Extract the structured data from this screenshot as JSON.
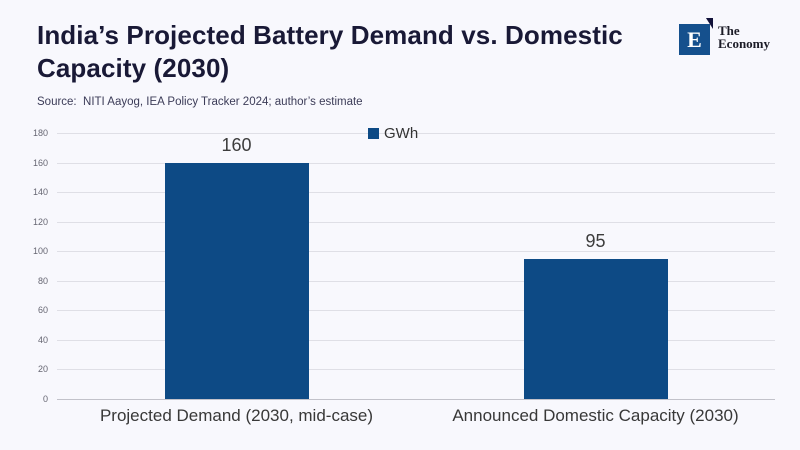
{
  "page": {
    "background": "#f8f8fd",
    "title": "India’s Projected Battery Demand vs. Domestic Capacity (2030)",
    "source": "Source:  NITI Aayog, IEA Policy Tracker 2024; author’s estimate"
  },
  "logo": {
    "letter": "E",
    "name_line1": "The",
    "name_line2": "Economy",
    "square_color": "#15508d"
  },
  "chart_data": {
    "type": "bar",
    "title": "India’s Projected Battery Demand vs. Domestic Capacity (2030)",
    "categories": [
      "Projected Demand (2030, mid-case)",
      "Announced Domestic Capacity (2030)"
    ],
    "values": [
      160,
      95
    ],
    "data_labels": [
      "160",
      "95"
    ],
    "legend": [
      {
        "label": "GWh",
        "color": "#0d4a85"
      }
    ],
    "legend_position": "top-center",
    "xlabel": "",
    "ylabel": "",
    "ylim": [
      0,
      180
    ],
    "yticks": [
      0,
      20,
      40,
      60,
      80,
      100,
      120,
      140,
      160,
      180
    ],
    "grid": true,
    "bar_color": "#0d4a85",
    "gridline_color": "#dfdfe6"
  }
}
